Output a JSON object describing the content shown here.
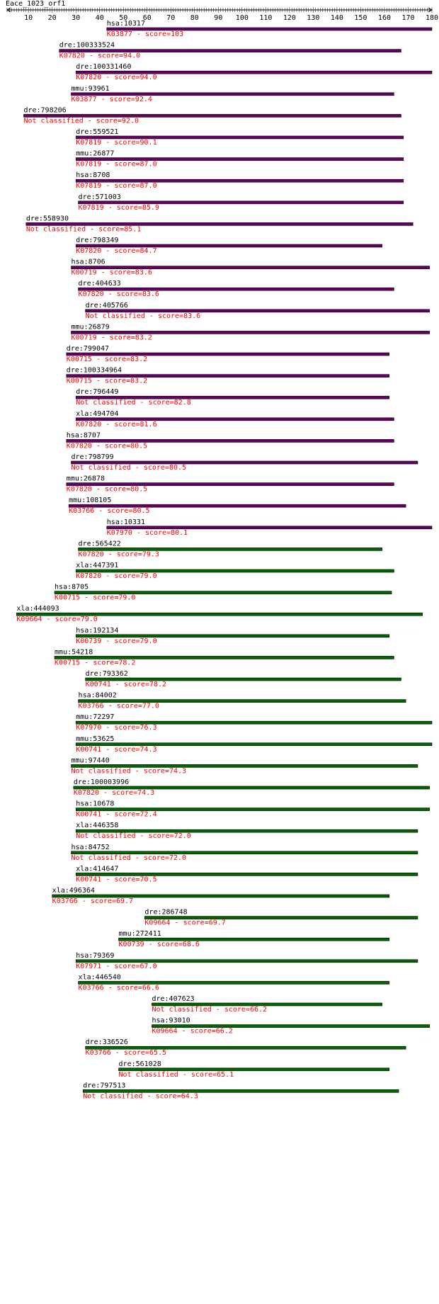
{
  "title": "Eace_1023_orf1",
  "axis": {
    "min": 1,
    "max": 180,
    "tick_labels": [
      "10",
      "20",
      "30",
      "40",
      "50",
      "60",
      "70",
      "80",
      "90",
      "100",
      "110",
      "120",
      "130",
      "140",
      "150",
      "160",
      "170",
      "180"
    ]
  },
  "colors": {
    "purple": "#660066",
    "green": "#006600",
    "label": "#000000",
    "score": "#ff0000",
    "axis": "#000000"
  },
  "hits": [
    {
      "id": "hsa:10317",
      "desc": "K03877 - score=103",
      "start": 43,
      "end": 180,
      "color": "purple"
    },
    {
      "id": "dre:100333524",
      "desc": "K07820 - score=94.0",
      "start": 23,
      "end": 167,
      "color": "purple"
    },
    {
      "id": "dre:100331460",
      "desc": "K07820 - score=94.0",
      "start": 30,
      "end": 180,
      "color": "purple"
    },
    {
      "id": "mmu:93961",
      "desc": "K03877 - score=92.4",
      "start": 28,
      "end": 164,
      "color": "purple"
    },
    {
      "id": "dre:798206",
      "desc": "Not classified - score=92.0",
      "start": 8,
      "end": 167,
      "color": "purple"
    },
    {
      "id": "dre:559521",
      "desc": "K07819 - score=90.1",
      "start": 30,
      "end": 168,
      "color": "purple"
    },
    {
      "id": "mmu:26877",
      "desc": "K07819 - score=87.0",
      "start": 30,
      "end": 168,
      "color": "purple"
    },
    {
      "id": "hsa:8708",
      "desc": "K07819 - score=87.0",
      "start": 30,
      "end": 168,
      "color": "purple"
    },
    {
      "id": "dre:571003",
      "desc": "K07819 - score=85.9",
      "start": 31,
      "end": 168,
      "color": "purple"
    },
    {
      "id": "dre:558930",
      "desc": "Not classified - score=85.1",
      "start": 9,
      "end": 172,
      "color": "purple"
    },
    {
      "id": "dre:798349",
      "desc": "K07820 - score=84.7",
      "start": 30,
      "end": 159,
      "color": "purple"
    },
    {
      "id": "hsa:8706",
      "desc": "K00719 - score=83.6",
      "start": 28,
      "end": 179,
      "color": "purple"
    },
    {
      "id": "dre:404633",
      "desc": "K07820 - score=83.6",
      "start": 31,
      "end": 164,
      "color": "purple"
    },
    {
      "id": "dre:405766",
      "desc": "Not classified - score=83.6",
      "start": 34,
      "end": 179,
      "color": "purple"
    },
    {
      "id": "mmu:26879",
      "desc": "K00719 - score=83.2",
      "start": 28,
      "end": 179,
      "color": "purple"
    },
    {
      "id": "dre:799047",
      "desc": "K00715 - score=83.2",
      "start": 26,
      "end": 162,
      "color": "purple"
    },
    {
      "id": "dre:100334964",
      "desc": "K00715 - score=83.2",
      "start": 26,
      "end": 162,
      "color": "purple"
    },
    {
      "id": "dre:796449",
      "desc": "Not classified - score=82.8",
      "start": 30,
      "end": 162,
      "color": "purple"
    },
    {
      "id": "xla:494704",
      "desc": "K07820 - score=81.6",
      "start": 30,
      "end": 164,
      "color": "purple"
    },
    {
      "id": "hsa:8707",
      "desc": "K07820 - score=80.5",
      "start": 26,
      "end": 164,
      "color": "purple"
    },
    {
      "id": "dre:798799",
      "desc": "Not classified - score=80.5",
      "start": 28,
      "end": 174,
      "color": "purple"
    },
    {
      "id": "mmu:26878",
      "desc": "K07820 - score=80.5",
      "start": 26,
      "end": 164,
      "color": "purple"
    },
    {
      "id": "mmu:108105",
      "desc": "K03766 - score=80.5",
      "start": 27,
      "end": 169,
      "color": "purple"
    },
    {
      "id": "hsa:10331",
      "desc": "K07970 - score=80.1",
      "start": 43,
      "end": 180,
      "color": "purple"
    },
    {
      "id": "dre:565422",
      "desc": "K07820 - score=79.3",
      "start": 31,
      "end": 159,
      "color": "green"
    },
    {
      "id": "xla:447391",
      "desc": "K07820 - score=79.0",
      "start": 30,
      "end": 164,
      "color": "green"
    },
    {
      "id": "hsa:8705",
      "desc": "K00715 - score=79.0",
      "start": 21,
      "end": 163,
      "color": "green"
    },
    {
      "id": "xla:444093",
      "desc": "K09664 - score=79.0",
      "start": 5,
      "end": 176,
      "color": "green"
    },
    {
      "id": "hsa:192134",
      "desc": "K00739 - score=79.0",
      "start": 30,
      "end": 162,
      "color": "green"
    },
    {
      "id": "mmu:54218",
      "desc": "K00715 - score=78.2",
      "start": 21,
      "end": 164,
      "color": "green"
    },
    {
      "id": "dre:793362",
      "desc": "K00741 - score=78.2",
      "start": 34,
      "end": 167,
      "color": "green"
    },
    {
      "id": "hsa:84002",
      "desc": "K03766 - score=77.0",
      "start": 31,
      "end": 169,
      "color": "green"
    },
    {
      "id": "mmu:72297",
      "desc": "K07970 - score=76.3",
      "start": 30,
      "end": 180,
      "color": "green"
    },
    {
      "id": "mmu:53625",
      "desc": "K00741 - score=74.3",
      "start": 30,
      "end": 180,
      "color": "green"
    },
    {
      "id": "mmu:97440",
      "desc": "Not classified - score=74.3",
      "start": 28,
      "end": 174,
      "color": "green"
    },
    {
      "id": "dre:100003996",
      "desc": "K07820 - score=74.3",
      "start": 29,
      "end": 179,
      "color": "green"
    },
    {
      "id": "hsa:10678",
      "desc": "K00741 - score=72.4",
      "start": 30,
      "end": 179,
      "color": "green"
    },
    {
      "id": "xla:446358",
      "desc": "Not classified - score=72.0",
      "start": 30,
      "end": 174,
      "color": "green"
    },
    {
      "id": "hsa:84752",
      "desc": "Not classified - score=72.0",
      "start": 28,
      "end": 174,
      "color": "green"
    },
    {
      "id": "xla:414647",
      "desc": "K00741 - score=70.5",
      "start": 30,
      "end": 174,
      "color": "green"
    },
    {
      "id": "xla:496364",
      "desc": "K03766 - score=69.7",
      "start": 20,
      "end": 162,
      "color": "green"
    },
    {
      "id": "dre:286748",
      "desc": "K09664 - score=69.7",
      "start": 59,
      "end": 174,
      "color": "green"
    },
    {
      "id": "mmu:272411",
      "desc": "K00739 - score=68.6",
      "start": 48,
      "end": 162,
      "color": "green"
    },
    {
      "id": "hsa:79369",
      "desc": "K07971 - score=67.0",
      "start": 30,
      "end": 174,
      "color": "green"
    },
    {
      "id": "xla:446540",
      "desc": "K03766 - score=66.6",
      "start": 31,
      "end": 162,
      "color": "green"
    },
    {
      "id": "dre:407623",
      "desc": "Not classified - score=66.2",
      "start": 62,
      "end": 159,
      "color": "green"
    },
    {
      "id": "hsa:93010",
      "desc": "K09664 - score=66.2",
      "start": 62,
      "end": 179,
      "color": "green"
    },
    {
      "id": "dre:336526",
      "desc": "K03766 - score=65.5",
      "start": 34,
      "end": 169,
      "color": "green"
    },
    {
      "id": "dre:561028",
      "desc": "Not classified - score=65.1",
      "start": 48,
      "end": 162,
      "color": "green"
    },
    {
      "id": "dre:797513",
      "desc": "Not classified - score=64.3",
      "start": 33,
      "end": 166,
      "color": "green"
    }
  ]
}
